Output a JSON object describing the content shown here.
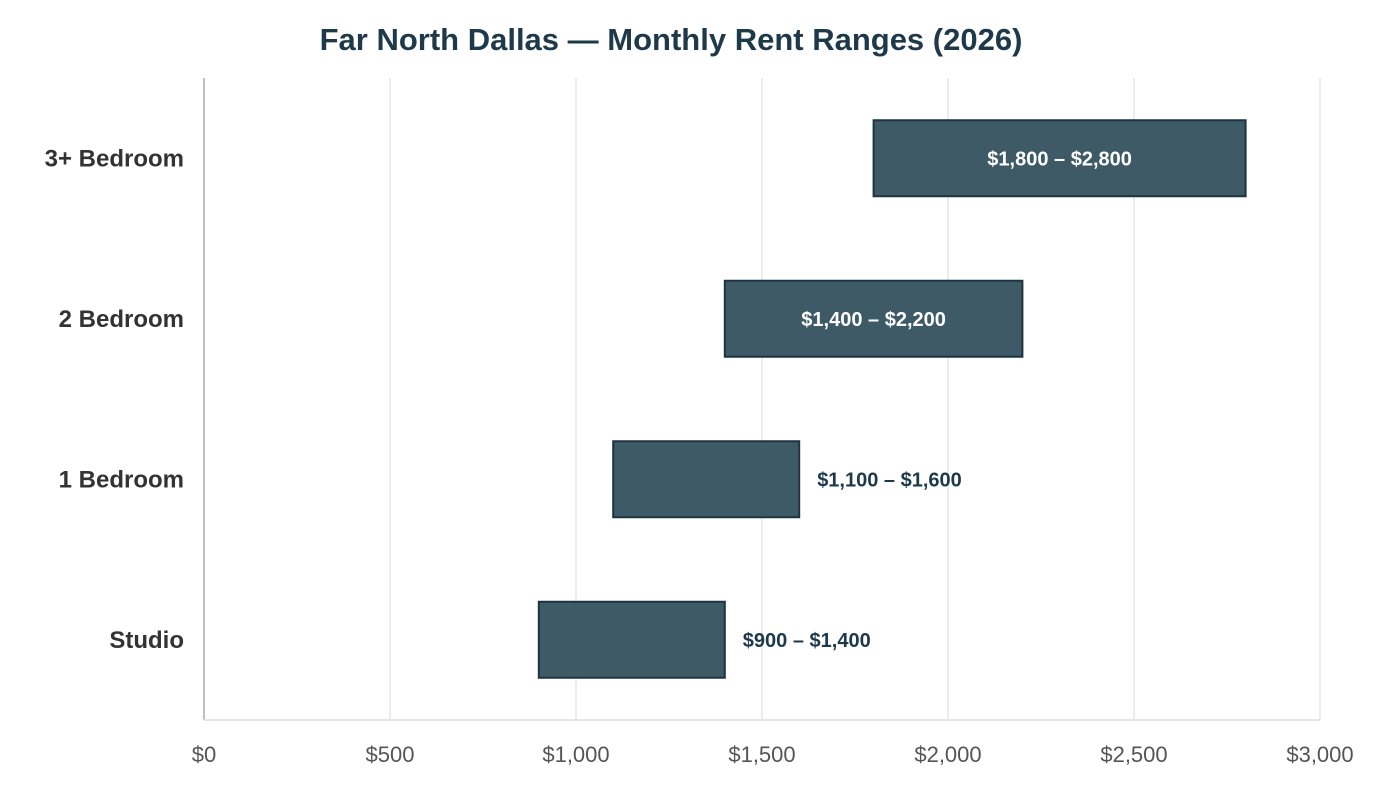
{
  "chart_data": {
    "type": "bar",
    "orientation": "horizontal",
    "title": "Far North Dallas — Monthly Rent Ranges (2026)",
    "xlabel": "",
    "ylabel": "",
    "xlim": [
      0,
      3000
    ],
    "x_ticks": [
      0,
      500,
      1000,
      1500,
      2000,
      2500,
      3000
    ],
    "x_tick_labels": [
      "$0",
      "$500",
      "$1,000",
      "$1,500",
      "$2,000",
      "$2,500",
      "$3,000"
    ],
    "categories": [
      "3+ Bedroom",
      "2 Bedroom",
      "1 Bedroom",
      "Studio"
    ],
    "ranges": [
      {
        "low": 1800,
        "high": 2800,
        "label": "$1,800 – $2,800"
      },
      {
        "low": 1400,
        "high": 2200,
        "label": "$1,400 – $2,200"
      },
      {
        "low": 1100,
        "high": 1600,
        "label": "$1,100 – $1,600"
      },
      {
        "low": 900,
        "high": 1400,
        "label": "$900 – $1,400"
      }
    ],
    "grid": true,
    "legend": "none",
    "colors": {
      "bar_fill": "#3d5a66",
      "bar_stroke": "#1e3440",
      "label_inside": "#ffffff",
      "label_outside": "#1e3a4a",
      "grid": "#e6e6e6",
      "axis": "#bfbfbf"
    }
  }
}
